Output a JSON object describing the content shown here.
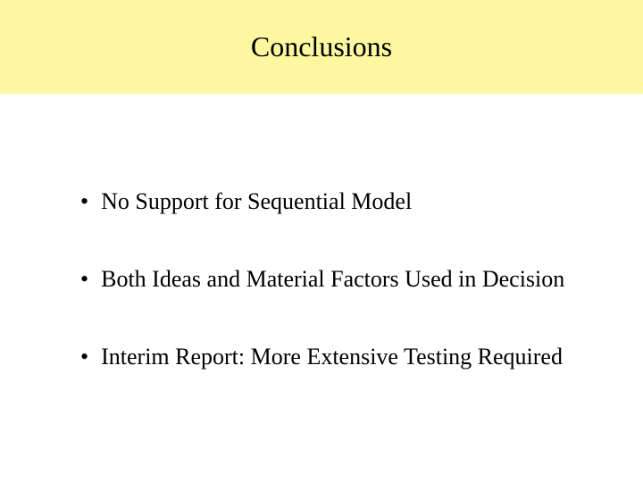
{
  "title_bar": {
    "background_color": "#fcf7a0",
    "text": "Conclusions",
    "text_color": "#000000",
    "fontsize_pt": 24
  },
  "bullets": [
    {
      "text": "No Support for Sequential Model"
    },
    {
      "text": "Both Ideas and Material Factors Used in Decision"
    },
    {
      "text": "Interim Report: More Extensive Testing Required"
    }
  ],
  "body": {
    "background_color": "#ffffff",
    "bullet_fontsize_pt": 20
  }
}
